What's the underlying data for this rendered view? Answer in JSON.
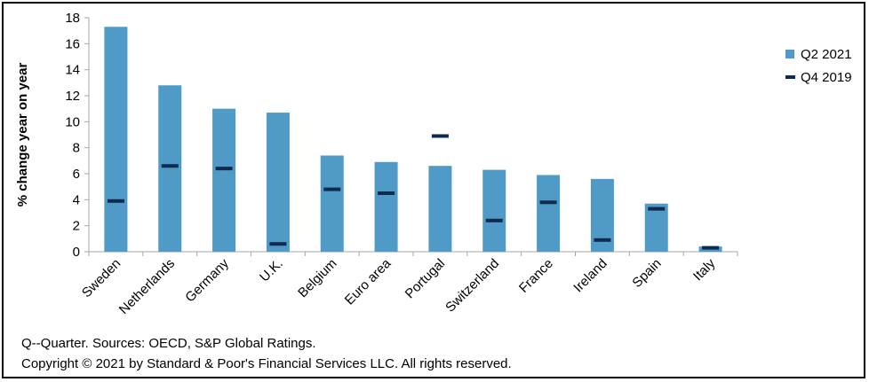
{
  "colors": {
    "bar": "#4f9ac7",
    "marker": "#0e2a4f",
    "axis": "#a6a6a6"
  },
  "chart_data": {
    "type": "bar",
    "categories": [
      "Sweden",
      "Netherlands",
      "Germany",
      "U.K.",
      "Belgium",
      "Euro area",
      "Portugal",
      "Switzerland",
      "France",
      "Ireland",
      "Spain",
      "Italy"
    ],
    "series": [
      {
        "name": "Q2 2021",
        "kind": "bar",
        "values": [
          17.3,
          12.8,
          11.0,
          10.7,
          7.4,
          6.9,
          6.6,
          6.3,
          5.9,
          5.6,
          3.7,
          0.4
        ]
      },
      {
        "name": "Q4 2019",
        "kind": "marker",
        "values": [
          3.9,
          6.6,
          6.4,
          0.6,
          4.8,
          4.5,
          8.9,
          2.4,
          3.8,
          0.9,
          3.3,
          0.3
        ]
      }
    ],
    "ylabel": "% change year on year",
    "xlabel": "",
    "ylim": [
      0,
      18
    ],
    "yticks": [
      0,
      2,
      4,
      6,
      8,
      10,
      12,
      14,
      16,
      18
    ],
    "grid": false,
    "legend_position": "right"
  },
  "footnotes": {
    "sources": "Q--Quarter. Sources: OECD, S&P Global Ratings.",
    "copyright": "Copyright © 2021 by Standard & Poor's Financial Services LLC. All rights reserved."
  }
}
